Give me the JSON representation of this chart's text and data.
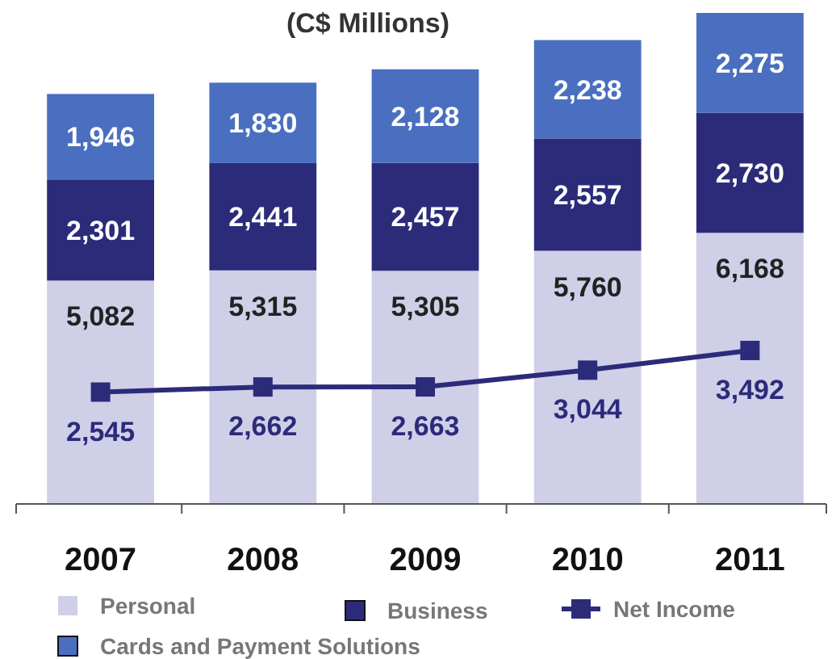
{
  "chart_data": {
    "type": "bar",
    "title": "(C$ Millions)",
    "categories": [
      "2007",
      "2008",
      "2009",
      "2010",
      "2011"
    ],
    "stacked": true,
    "legend": "bottom",
    "series": [
      {
        "name": "Personal",
        "color": "#d0cfe8",
        "values": [
          5082,
          5315,
          5305,
          5760,
          6168
        ],
        "value_labels": [
          "5,082",
          "5,315",
          "5,305",
          "5,760",
          "6,168"
        ]
      },
      {
        "name": "Business",
        "color": "#2c2b7a",
        "values": [
          2301,
          2441,
          2457,
          2557,
          2730
        ],
        "value_labels": [
          "2,301",
          "2,441",
          "2,457",
          "2,557",
          "2,730"
        ]
      },
      {
        "name": "Cards and Payment Solutions",
        "color": "#4a6fc0",
        "values": [
          1946,
          1830,
          2128,
          2238,
          2275
        ],
        "value_labels": [
          "1,946",
          "1,830",
          "2,128",
          "2,238",
          "2,275"
        ]
      },
      {
        "name": "Net Income",
        "type": "line",
        "color": "#2c2b7a",
        "marker": "square",
        "line_style": "solid",
        "values": [
          2545,
          2662,
          2663,
          3044,
          3492
        ],
        "value_labels": [
          "2,545",
          "2,662",
          "2,663",
          "3,044",
          "3,492"
        ]
      }
    ]
  }
}
